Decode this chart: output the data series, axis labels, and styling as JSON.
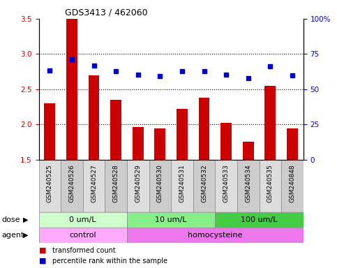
{
  "title": "GDS3413 / 462060",
  "samples": [
    "GSM240525",
    "GSM240526",
    "GSM240527",
    "GSM240528",
    "GSM240529",
    "GSM240530",
    "GSM240531",
    "GSM240532",
    "GSM240533",
    "GSM240534",
    "GSM240535",
    "GSM240848"
  ],
  "red_values": [
    2.3,
    3.5,
    2.7,
    2.35,
    1.97,
    1.95,
    2.22,
    2.38,
    2.02,
    1.76,
    2.55,
    1.95
  ],
  "blue_pct": [
    63.5,
    71.0,
    67.0,
    63.0,
    60.5,
    59.5,
    63.0,
    63.0,
    60.5,
    58.0,
    66.5,
    60.0
  ],
  "ylim_left": [
    1.5,
    3.5
  ],
  "ylim_right": [
    0,
    100
  ],
  "yticks_left": [
    1.5,
    2.0,
    2.5,
    3.0,
    3.5
  ],
  "yticks_right": [
    0,
    25,
    50,
    75,
    100
  ],
  "ytick_labels_right": [
    "0",
    "25",
    "50",
    "75",
    "100%"
  ],
  "grid_yticks": [
    2.0,
    2.5,
    3.0
  ],
  "dose_groups": [
    {
      "label": "0 um/L",
      "start": 0,
      "end": 4,
      "color": "#ccffcc"
    },
    {
      "label": "10 um/L",
      "start": 4,
      "end": 8,
      "color": "#88ee88"
    },
    {
      "label": "100 um/L",
      "start": 8,
      "end": 12,
      "color": "#44cc44"
    }
  ],
  "agent_groups": [
    {
      "label": "control",
      "start": 0,
      "end": 4,
      "color": "#ffaaff"
    },
    {
      "label": "homocysteine",
      "start": 4,
      "end": 12,
      "color": "#ee77ee"
    }
  ],
  "legend_red_label": "transformed count",
  "legend_blue_label": "percentile rank within the sample",
  "bar_color": "#cc0000",
  "dot_color": "#0000cc",
  "ylabel_left_color": "#cc0000",
  "ylabel_right_color": "#0000cc",
  "sample_bg_even": "#dddddd",
  "sample_bg_odd": "#cccccc",
  "border_color": "#888888"
}
